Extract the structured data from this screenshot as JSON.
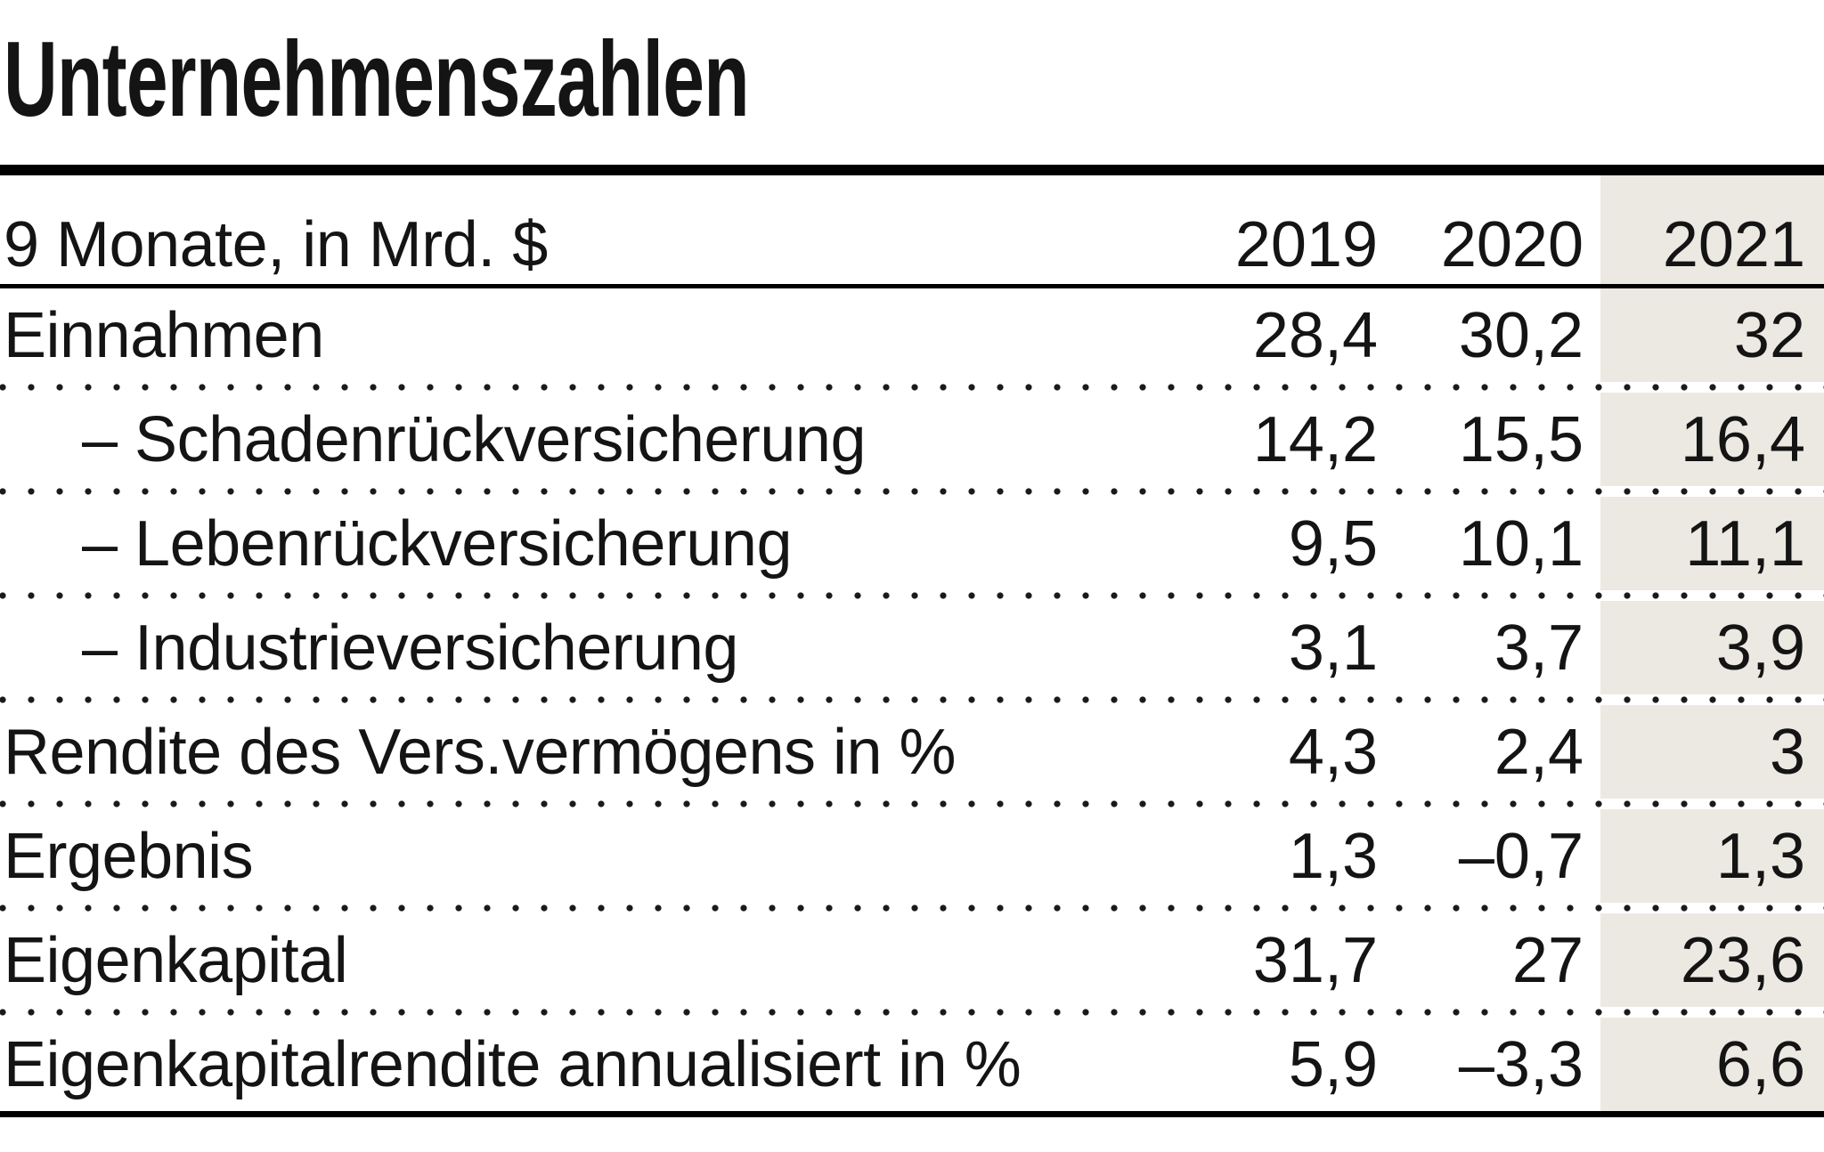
{
  "title": "Unternehmenszahlen",
  "table": {
    "unit_label": "9 Monate, in Mrd. $",
    "columns": [
      "2019",
      "2020",
      "2021"
    ],
    "rows": [
      {
        "label": "Einnahmen",
        "values": [
          "28,4",
          "30,2",
          "32"
        ]
      },
      {
        "label": "– Schadenrückversicherung",
        "values": [
          "14,2",
          "15,5",
          "16,4"
        ]
      },
      {
        "label": "– Lebenrückversicherung",
        "values": [
          "9,5",
          "10,1",
          "11,1"
        ]
      },
      {
        "label": "– Industrieversicherung",
        "values": [
          "3,1",
          "3,7",
          "3,9"
        ]
      },
      {
        "label": "Rendite des Vers.vermögens in %",
        "values": [
          "4,3",
          "2,4",
          "3"
        ]
      },
      {
        "label": "Ergebnis",
        "values": [
          "1,3",
          "–0,7",
          "1,3"
        ]
      },
      {
        "label": "Eigenkapital",
        "values": [
          "31,7",
          "27",
          "23,6"
        ]
      },
      {
        "label": "Eigenkapitalrendite annualisiert in %",
        "values": [
          "5,9",
          "–3,3",
          "6,6"
        ]
      }
    ],
    "highlight_color": "#ece9e2",
    "rule_color": "#000000",
    "text_color": "#141414"
  },
  "chart_data": {
    "type": "table",
    "title": "Unternehmenszahlen",
    "subtitle": "9 Monate, in Mrd. $",
    "columns": [
      "2019",
      "2020",
      "2021"
    ],
    "highlighted_column": "2021",
    "series": [
      {
        "name": "Einnahmen",
        "values": [
          28.4,
          30.2,
          32
        ]
      },
      {
        "name": "Schadenrückversicherung",
        "values": [
          14.2,
          15.5,
          16.4
        ]
      },
      {
        "name": "Lebenrückversicherung",
        "values": [
          9.5,
          10.1,
          11.1
        ]
      },
      {
        "name": "Industrieversicherung",
        "values": [
          3.1,
          3.7,
          3.9
        ]
      },
      {
        "name": "Rendite des Vers.vermögens in %",
        "values": [
          4.3,
          2.4,
          3
        ]
      },
      {
        "name": "Ergebnis",
        "values": [
          1.3,
          -0.7,
          1.3
        ]
      },
      {
        "name": "Eigenkapital",
        "values": [
          31.7,
          27,
          23.6
        ]
      },
      {
        "name": "Eigenkapitalrendite annualisiert in %",
        "values": [
          5.9,
          -3.3,
          6.6
        ]
      }
    ]
  }
}
